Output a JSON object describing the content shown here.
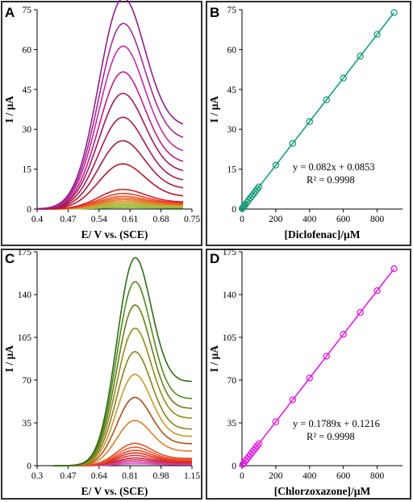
{
  "colors": {
    "frame": "#2f2f2f",
    "diclofenac_fit": "#1a9c7b",
    "chlorzoxazone_fit": "#e21ee2"
  },
  "chart_data": [
    {
      "panel": "A",
      "type": "line",
      "xlabel": "E/ V vs. (SCE)",
      "ylabel": "I / µA",
      "xlim": [
        0.4,
        0.75
      ],
      "ylim": [
        0,
        75
      ],
      "xticks": [
        "0.4",
        "0.47",
        "0.54",
        "0.61",
        "0.68",
        "0.75"
      ],
      "yticks": [
        "0",
        "15",
        "30",
        "45",
        "60",
        "75"
      ],
      "grid": false,
      "peak_potential": 0.59,
      "x_range_of_curves": [
        0.4,
        0.73
      ],
      "series": [
        {
          "peak": 0.5,
          "end_current": 0.4,
          "color": "#7fbf3f"
        },
        {
          "peak": 1.0,
          "end_current": 0.8,
          "color": "#9ec23a"
        },
        {
          "peak": 1.5,
          "end_current": 1.0,
          "color": "#b8b83a"
        },
        {
          "peak": 2.0,
          "end_current": 1.2,
          "color": "#c9a838"
        },
        {
          "peak": 2.6,
          "end_current": 1.4,
          "color": "#d79433"
        },
        {
          "peak": 3.2,
          "end_current": 1.6,
          "color": "#e07f2e"
        },
        {
          "peak": 3.8,
          "end_current": 1.8,
          "color": "#e8682a"
        },
        {
          "peak": 4.5,
          "end_current": 2.0,
          "color": "#ec5428"
        },
        {
          "peak": 5.5,
          "end_current": 2.3,
          "color": "#e83a28"
        },
        {
          "peak": 7.0,
          "end_current": 2.7,
          "color": "#d61f2a"
        },
        {
          "peak": 16.3,
          "end_current": 5.0,
          "color": "#b3192f"
        },
        {
          "peak": 24.6,
          "end_current": 8.0,
          "color": "#a51c3f"
        },
        {
          "peak": 33.0,
          "end_current": 11.0,
          "color": "#b0174f"
        },
        {
          "peak": 41.5,
          "end_current": 14.5,
          "color": "#9e1a5a"
        },
        {
          "peak": 49.1,
          "end_current": 18.0,
          "color": "#c01c84"
        },
        {
          "peak": 58.2,
          "end_current": 22.0,
          "color": "#c32ba0"
        },
        {
          "peak": 66.0,
          "end_current": 27.0,
          "color": "#a42a93"
        },
        {
          "peak": 74.8,
          "end_current": 32.0,
          "color": "#8c1f8c"
        }
      ]
    },
    {
      "panel": "B",
      "type": "scatter",
      "xlabel": "[Diclofenac]/µM",
      "ylabel": "I / µA",
      "xlim": [
        0,
        950
      ],
      "ylim": [
        0,
        75
      ],
      "xticks": [
        "0",
        "200",
        "400",
        "600",
        "800"
      ],
      "yticks": [
        "0",
        "15",
        "30",
        "45",
        "60",
        "75"
      ],
      "grid": false,
      "fit": {
        "slope": 0.082,
        "intercept": 0.0853
      },
      "equation": "y = 0.082x + 0.0853",
      "r2": "R² = 0.9998",
      "x": [
        1,
        5,
        10,
        15,
        20,
        30,
        40,
        50,
        60,
        70,
        80,
        90,
        100,
        200,
        300,
        400,
        500,
        600,
        700,
        800,
        900
      ],
      "y": [
        0.17,
        0.5,
        0.9,
        1.3,
        1.7,
        2.5,
        3.4,
        4.2,
        5.0,
        5.8,
        6.6,
        7.5,
        8.3,
        16.5,
        24.7,
        32.9,
        41.1,
        49.3,
        57.5,
        65.7,
        73.9
      ]
    },
    {
      "panel": "C",
      "type": "line",
      "xlabel": "E/ V vs. (SCE)",
      "ylabel": "I / µA",
      "xlim": [
        0.3,
        1.15
      ],
      "ylim": [
        0,
        175
      ],
      "xticks": [
        "0.3",
        "0.47",
        "0.64",
        "0.81",
        "0.98",
        "1.15"
      ],
      "yticks": [
        "0",
        "35",
        "70",
        "105",
        "140",
        "175"
      ],
      "grid": false,
      "peak_potential": 0.83,
      "x_range_of_curves": [
        0.39,
        1.15
      ],
      "series": [
        {
          "peak": 1.5,
          "end_current": 0.8,
          "color": "#d84fc4"
        },
        {
          "peak": 3.0,
          "end_current": 1.3,
          "color": "#c93aa8"
        },
        {
          "peak": 4.5,
          "end_current": 1.8,
          "color": "#e23a6d"
        },
        {
          "peak": 6.0,
          "end_current": 2.4,
          "color": "#c41f3a"
        },
        {
          "peak": 8.0,
          "end_current": 3.0,
          "color": "#e2362b"
        },
        {
          "peak": 10.0,
          "end_current": 3.6,
          "color": "#d8322d"
        },
        {
          "peak": 12.0,
          "end_current": 4.3,
          "color": "#e8462a"
        },
        {
          "peak": 14.5,
          "end_current": 5.0,
          "color": "#e85d2b"
        },
        {
          "peak": 17.5,
          "end_current": 6.0,
          "color": "#d9532b"
        },
        {
          "peak": 35.5,
          "end_current": 12.0,
          "color": "#e07b23"
        },
        {
          "peak": 53.6,
          "end_current": 18.0,
          "color": "#a6521c"
        },
        {
          "peak": 71.7,
          "end_current": 24.0,
          "color": "#c79a2c"
        },
        {
          "peak": 89.5,
          "end_current": 30.0,
          "color": "#8e7f1c"
        },
        {
          "peak": 107.5,
          "end_current": 39.0,
          "color": "#8e8e1e"
        },
        {
          "peak": 125.5,
          "end_current": 47.0,
          "color": "#6a7a1a"
        },
        {
          "peak": 143.5,
          "end_current": 55.0,
          "color": "#4f8a1e"
        },
        {
          "peak": 161.2,
          "end_current": 69.0,
          "color": "#2f6b16"
        }
      ]
    },
    {
      "panel": "D",
      "type": "scatter",
      "xlabel": "[Chlorzoxazone]/µM",
      "ylabel": "I / µA",
      "xlim": [
        0,
        950
      ],
      "ylim": [
        0,
        175
      ],
      "xticks": [
        "0",
        "200",
        "400",
        "600",
        "800"
      ],
      "yticks": [
        "0",
        "35",
        "70",
        "105",
        "140",
        "175"
      ],
      "grid": false,
      "fit": {
        "slope": 0.1789,
        "intercept": 0.1216
      },
      "equation": "y = 0.1789x + 0.1216",
      "r2": "R² = 0.9998",
      "x": [
        5,
        10,
        20,
        30,
        40,
        50,
        60,
        70,
        80,
        90,
        100,
        200,
        300,
        400,
        500,
        600,
        700,
        800,
        900
      ],
      "y": [
        1.0,
        1.9,
        3.7,
        5.5,
        7.3,
        9.1,
        10.9,
        12.6,
        14.4,
        16.2,
        18.0,
        35.9,
        53.8,
        71.7,
        89.6,
        107.5,
        125.4,
        143.2,
        161.1
      ]
    }
  ]
}
